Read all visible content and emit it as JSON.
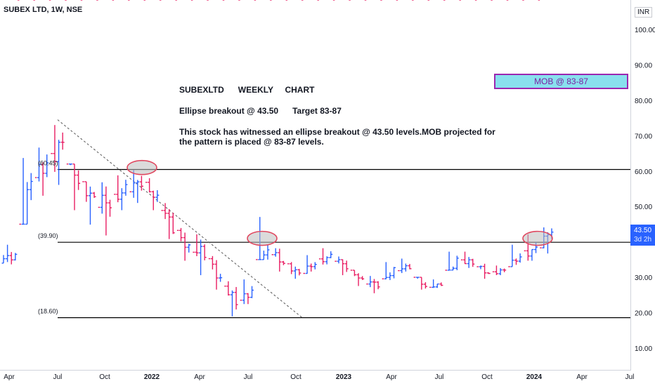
{
  "header": {
    "ticker": "SUBEX LTD, 1W, NSE",
    "currency": "INR"
  },
  "price_badge": {
    "price": "43.50",
    "countdown": "3d 2h",
    "color": "#2962ff"
  },
  "annotations": {
    "title": "SUBEXLTD      WEEKLY     CHART",
    "line2": "Ellipse breakout @ 43.50      Target 83-87",
    "line3": "This stock has witnessed an ellipse breakout @ 43.50 levels.MOB projected for the pattern is placed @ 83-87 levels.",
    "mob_label": "MOB @ 83-87",
    "level_labels": [
      "(60.45)",
      "(39.90)",
      "(18.60)"
    ]
  },
  "colors": {
    "up": "#2962ff",
    "down": "#e91e63",
    "mob_fill": "#89e0ee",
    "mob_border": "#9c27b0",
    "ellipse": "#e0475f"
  },
  "chart_data": {
    "type": "ohlc",
    "ylim": [
      0,
      107
    ],
    "ticks_y": [
      "100.00",
      "90.00",
      "80.00",
      "70.00",
      "60.00",
      "50.00",
      "40.00",
      "30.00",
      "20.00",
      "10.00"
    ],
    "ticks_x": [
      "Apr",
      "Jul",
      "Oct",
      "2022",
      "Apr",
      "Jul",
      "Oct",
      "2023",
      "Apr",
      "Jul",
      "Oct",
      "2024",
      "Apr",
      "Jul"
    ],
    "horizontal_levels": [
      60.45,
      39.9,
      18.6
    ],
    "trendline": {
      "from": [
        0,
        74.5
      ],
      "to": [
        1,
        18.6
      ]
    },
    "ellipses": [
      {
        "period": "Dec 2021",
        "center": 61
      },
      {
        "period": "Aug 2022",
        "center": 41
      },
      {
        "period": "Jan 2024",
        "center": 41
      }
    ],
    "series": [
      {
        "period": "2021-04",
        "close": 36,
        "high": 40,
        "low": 33
      },
      {
        "period": "2021-05",
        "close": 58,
        "high": 65,
        "low": 45
      },
      {
        "period": "2021-06",
        "close": 62,
        "high": 68,
        "low": 52
      },
      {
        "period": "2021-07",
        "close": 68,
        "high": 74.5,
        "low": 55
      },
      {
        "period": "2021-08",
        "close": 57,
        "high": 62,
        "low": 48
      },
      {
        "period": "2021-09",
        "close": 52,
        "high": 57,
        "low": 44
      },
      {
        "period": "2021-10",
        "close": 51,
        "high": 58,
        "low": 41
      },
      {
        "period": "2021-11",
        "close": 55,
        "high": 60,
        "low": 48
      },
      {
        "period": "2021-12",
        "close": 57,
        "high": 61.5,
        "low": 50
      },
      {
        "period": "2022-01",
        "close": 52,
        "high": 58,
        "low": 48
      },
      {
        "period": "2022-02",
        "close": 44,
        "high": 52,
        "low": 40
      },
      {
        "period": "2022-03",
        "close": 38,
        "high": 44,
        "low": 34
      },
      {
        "period": "2022-04",
        "close": 37,
        "high": 43,
        "low": 30
      },
      {
        "period": "2022-05",
        "close": 29,
        "high": 36,
        "low": 26
      },
      {
        "period": "2022-06",
        "close": 23,
        "high": 29,
        "low": 18.6
      },
      {
        "period": "2022-07",
        "close": 26,
        "high": 30,
        "low": 22
      },
      {
        "period": "2022-08",
        "close": 38,
        "high": 48,
        "low": 35
      },
      {
        "period": "2022-09",
        "close": 34,
        "high": 39,
        "low": 31
      },
      {
        "period": "2022-10",
        "close": 31,
        "high": 35,
        "low": 29
      },
      {
        "period": "2022-11",
        "close": 34,
        "high": 37,
        "low": 31
      },
      {
        "period": "2022-12",
        "close": 36,
        "high": 39,
        "low": 33
      },
      {
        "period": "2023-01",
        "close": 33,
        "high": 36,
        "low": 30
      },
      {
        "period": "2023-02",
        "close": 29,
        "high": 32,
        "low": 27
      },
      {
        "period": "2023-03",
        "close": 28,
        "high": 31,
        "low": 25
      },
      {
        "period": "2023-04",
        "close": 32,
        "high": 35,
        "low": 29
      },
      {
        "period": "2023-05",
        "close": 33,
        "high": 36,
        "low": 31
      },
      {
        "period": "2023-06",
        "close": 27,
        "high": 30,
        "low": 26
      },
      {
        "period": "2023-07",
        "close": 28,
        "high": 30,
        "low": 27
      },
      {
        "period": "2023-08",
        "close": 35,
        "high": 38,
        "low": 32
      },
      {
        "period": "2023-09",
        "close": 34,
        "high": 38,
        "low": 32
      },
      {
        "period": "2023-10",
        "close": 31,
        "high": 34,
        "low": 29
      },
      {
        "period": "2023-11",
        "close": 32,
        "high": 34,
        "low": 30
      },
      {
        "period": "2023-12",
        "close": 36,
        "high": 40,
        "low": 33
      },
      {
        "period": "2024-01",
        "close": 38,
        "high": 43,
        "low": 34
      },
      {
        "period": "2024-02",
        "close": 43.5,
        "high": 45,
        "low": 36
      }
    ]
  }
}
